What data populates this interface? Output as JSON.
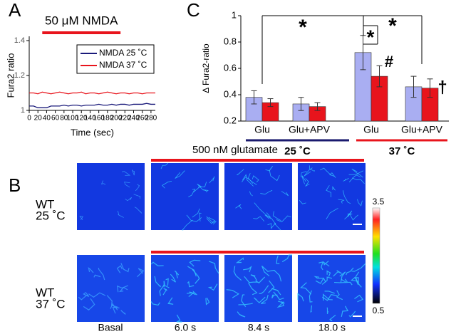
{
  "panel_labels": [
    "A",
    "B",
    "C"
  ],
  "chart_data": [
    {
      "type": "line",
      "ylabel": "Fura2 ratio",
      "xlabel": "Time (sec)",
      "stimulus": {
        "label": "50 μM NMDA",
        "range": [
          30,
          210
        ],
        "color": "#e8141c"
      },
      "x": [
        0,
        10,
        20,
        30,
        40,
        50,
        60,
        70,
        80,
        90,
        100,
        110,
        120,
        130,
        140,
        150,
        160,
        170,
        180,
        190,
        200,
        210,
        220,
        230,
        240,
        250,
        260,
        270,
        280,
        290
      ],
      "series": [
        {
          "name": "NMDA 25 ˚C",
          "color": "#1a1a7a",
          "values": [
            1.025,
            1.025,
            1.015,
            1.015,
            1.015,
            1.025,
            1.025,
            1.025,
            1.03,
            1.025,
            1.03,
            1.03,
            1.025,
            1.03,
            1.03,
            1.03,
            1.035,
            1.03,
            1.03,
            1.035,
            1.03,
            1.035,
            1.035,
            1.03,
            1.035,
            1.035,
            1.035,
            1.04,
            1.035,
            1.035
          ]
        },
        {
          "name": "NMDA 37 ˚C",
          "color": "#e8141c",
          "values": [
            1.1,
            1.1,
            1.095,
            1.105,
            1.1,
            1.095,
            1.1,
            1.105,
            1.1,
            1.095,
            1.1,
            1.1,
            1.105,
            1.095,
            1.1,
            1.1,
            1.095,
            1.1,
            1.105,
            1.1,
            1.095,
            1.1,
            1.1,
            1.095,
            1.1,
            1.1,
            1.095,
            1.1,
            1.1,
            1.1
          ]
        }
      ],
      "xlim": [
        0,
        290
      ],
      "xticks": [
        0,
        20,
        40,
        60,
        80,
        100,
        120,
        140,
        160,
        180,
        200,
        220,
        240,
        260,
        280
      ],
      "ylim": [
        1,
        1.4
      ],
      "yticks": [
        1,
        1.2,
        1.4
      ],
      "legend": "top-right"
    },
    {
      "type": "bar",
      "ylabel": "Δ Fura2-ratio",
      "categories": [
        "Glu",
        "Glu+APV",
        "Glu",
        "Glu+APV"
      ],
      "groups": [
        {
          "label": "25 ˚C",
          "color": "#1a1a6e"
        },
        {
          "label": "37 ˚C",
          "color": "#e8141c"
        }
      ],
      "series": [
        {
          "color": "#a9aef2",
          "values": [
            0.38,
            0.33,
            0.72,
            0.46
          ],
          "errors": [
            0.05,
            0.05,
            0.13,
            0.08
          ]
        },
        {
          "color": "#e8141c",
          "values": [
            0.34,
            0.31,
            0.54,
            0.45
          ],
          "errors": [
            0.03,
            0.03,
            0.08,
            0.07
          ]
        }
      ],
      "ylim": [
        0.2,
        1
      ],
      "yticks": [
        0.2,
        0.4,
        0.6,
        0.8,
        1
      ],
      "annotations": [
        "*",
        "*",
        "*",
        "#",
        "†"
      ]
    }
  ],
  "panel_b": {
    "stimulus": "500 nM glutamate",
    "rows": [
      [
        "WT",
        "25 ˚C"
      ],
      [
        "WT",
        "37 ˚C"
      ]
    ],
    "columns": [
      "Basal",
      "6.0 s",
      "8.4 s",
      "18.0 s"
    ],
    "colorbar": [
      3.5,
      0.5
    ]
  }
}
